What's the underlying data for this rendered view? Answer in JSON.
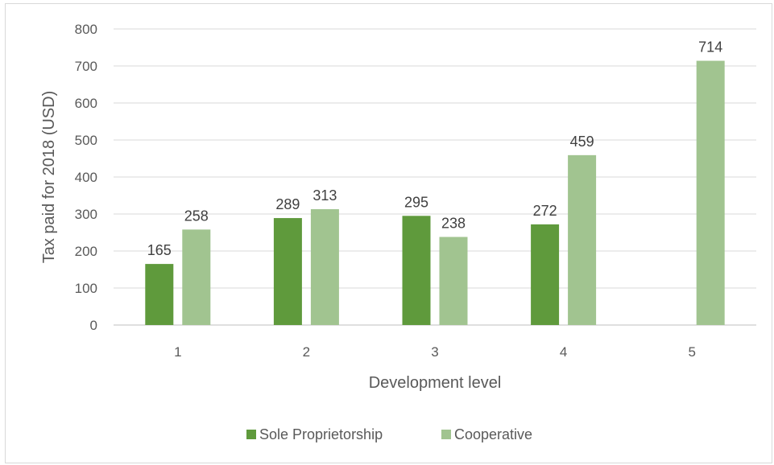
{
  "chart_data": {
    "type": "bar",
    "xlabel": "Development level",
    "ylabel": "Tax paid for 2018 (USD)",
    "categories": [
      "1",
      "2",
      "3",
      "4",
      "5"
    ],
    "ylim": [
      0,
      800
    ],
    "yticks": [
      0,
      100,
      200,
      300,
      400,
      500,
      600,
      700,
      800
    ],
    "grid": true,
    "legend_position": "bottom",
    "series": [
      {
        "name": "Sole Proprietorship",
        "color": "#5f9a3c",
        "values": [
          165,
          289,
          295,
          272,
          null
        ]
      },
      {
        "name": "Cooperative",
        "color": "#a1c490",
        "values": [
          258,
          313,
          238,
          459,
          714
        ]
      }
    ]
  }
}
